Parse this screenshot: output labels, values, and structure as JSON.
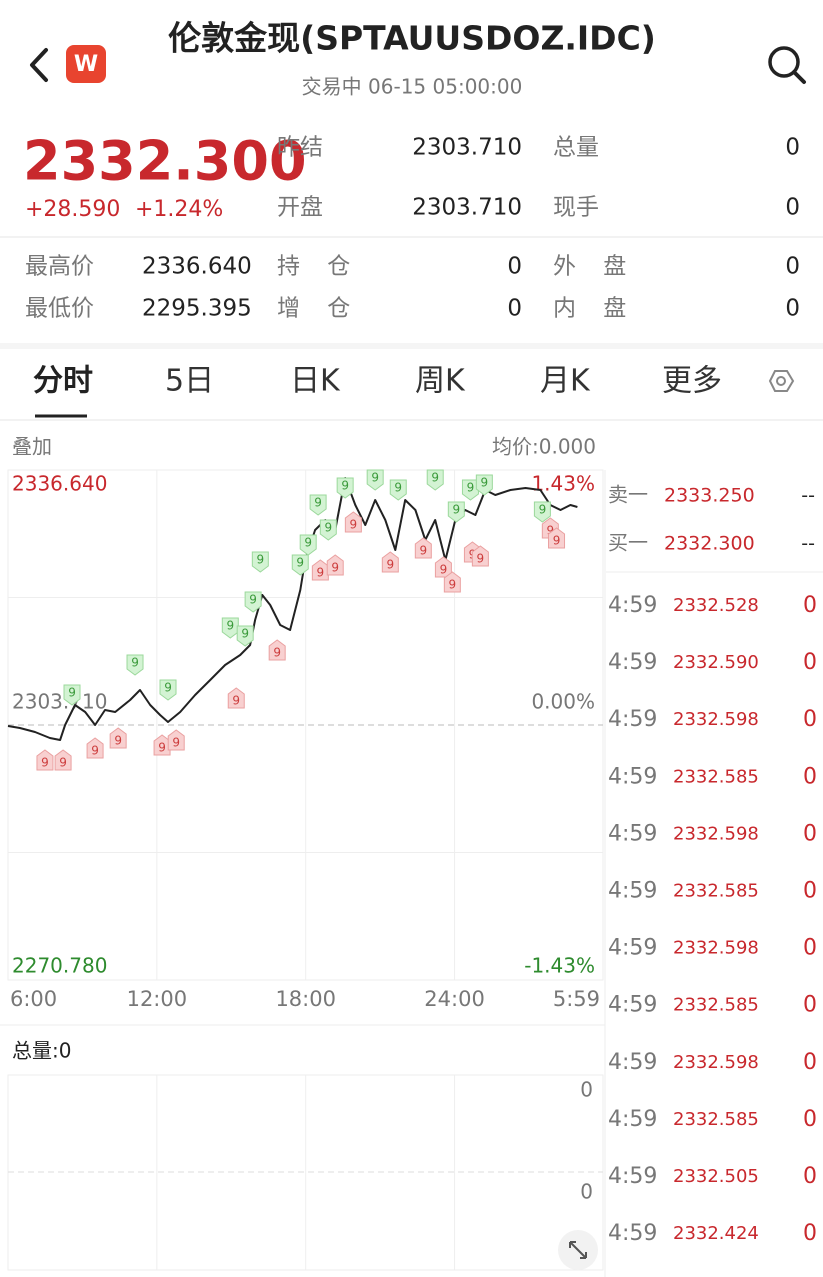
{
  "header": {
    "title": "伦敦金现(SPTAUUSDOZ.IDC)",
    "subtitle": "交易中 06-15 05:00:00",
    "badge": "W"
  },
  "quote": {
    "price": "2332.300",
    "change": "+28.590",
    "change_pct": "+1.24%",
    "fields": [
      {
        "label": "昨结",
        "value": "2303.710"
      },
      {
        "label": "总量",
        "value": "0"
      },
      {
        "label": "开盘",
        "value": "2303.710"
      },
      {
        "label": "现手",
        "value": "0"
      },
      {
        "label": "最高价",
        "value": "2336.640"
      },
      {
        "label": "持 仓",
        "value": "0"
      },
      {
        "label": "外 盘",
        "value": "0"
      },
      {
        "label": "最低价",
        "value": "2295.395"
      },
      {
        "label": "增 仓",
        "value": "0"
      },
      {
        "label": "内 盘",
        "value": "0"
      }
    ]
  },
  "tabs": [
    "分时",
    "5日",
    "日K",
    "周K",
    "月K",
    "更多"
  ],
  "chart_data": {
    "type": "line",
    "overlay_label": "叠加",
    "avg_label": "均价:0.000",
    "color": "#222222",
    "x": [
      0,
      0.48,
      1.09,
      1.69,
      2.1,
      2.3,
      2.7,
      3.11,
      3.51,
      3.91,
      4.32,
      4.92,
      5.32,
      5.73,
      6.13,
      6.45,
      6.94,
      7.54,
      8.15,
      8.75,
      9.36,
      9.76,
      9.96,
      10.25,
      10.57,
      10.97,
      11.37,
      11.78,
      11.98,
      12.38,
      12.79,
      13.19,
      13.59,
      14.0,
      14.4,
      14.8,
      15.21,
      15.61,
      16.01,
      16.42,
      16.82,
      17.22,
      17.63,
      18.03,
      18.43,
      18.84,
      19.24,
      19.64,
      20.25,
      20.86,
      21.46,
      21.86,
      22.27,
      22.67,
      22.95
    ],
    "values": [
      2303.58,
      2303.32,
      2302.81,
      2302.03,
      2301.77,
      2303.71,
      2306.29,
      2305.39,
      2303.71,
      2305.65,
      2305.39,
      2306.94,
      2308.23,
      2306.29,
      2305.0,
      2304.1,
      2305.39,
      2307.58,
      2309.52,
      2311.46,
      2312.75,
      2314.04,
      2317.27,
      2320.5,
      2319.21,
      2316.62,
      2315.98,
      2321.14,
      2325.01,
      2328.89,
      2330.18,
      2328.89,
      2335.61,
      2332.12,
      2329.54,
      2332.77,
      2330.18,
      2326.31,
      2332.77,
      2331.48,
      2327.6,
      2330.18,
      2325.01,
      2330.18,
      2331.48,
      2330.83,
      2334.06,
      2333.41,
      2334.06,
      2334.32,
      2334.06,
      2332.12,
      2331.48,
      2332.12,
      2331.86
    ],
    "xlim": [
      0,
      23.983
    ],
    "xticks": [
      {
        "value": 0,
        "label": "6:00"
      },
      {
        "value": 6,
        "label": "12:00"
      },
      {
        "value": 12,
        "label": "18:00"
      },
      {
        "value": 18,
        "label": "24:00"
      },
      {
        "value": 23.983,
        "label": "5:59"
      }
    ],
    "ylim": [
      2270.78,
      2336.64
    ],
    "yticks": [
      {
        "value": 2336.64,
        "label": "2336.640"
      },
      {
        "value": 2303.71,
        "label": "2303.710"
      },
      {
        "value": 2270.78,
        "label": "2270.780"
      }
    ],
    "y2lim": [
      -1.43,
      1.43
    ],
    "y2ticks": [
      {
        "value": 1.43,
        "label": "1.43%"
      },
      {
        "value": 0,
        "label": "0.00%"
      },
      {
        "value": -1.43,
        "label": "-1.43%"
      }
    ],
    "signals": [
      {
        "kind": "up",
        "x": 2.58,
        "y": 2307.58,
        "label": "9"
      },
      {
        "kind": "up",
        "x": 5.12,
        "y": 2311.46,
        "label": "9"
      },
      {
        "kind": "up",
        "x": 6.45,
        "y": 2308.23,
        "label": "9"
      },
      {
        "kind": "up",
        "x": 8.96,
        "y": 2316.24,
        "label": "9"
      },
      {
        "kind": "up",
        "x": 9.56,
        "y": 2315.2,
        "label": "9"
      },
      {
        "kind": "up",
        "x": 9.88,
        "y": 2319.59,
        "label": "9"
      },
      {
        "kind": "up",
        "x": 10.17,
        "y": 2324.76,
        "label": "9"
      },
      {
        "kind": "up",
        "x": 11.78,
        "y": 2324.37,
        "label": "9"
      },
      {
        "kind": "up",
        "x": 12.1,
        "y": 2326.95,
        "label": "9"
      },
      {
        "kind": "up",
        "x": 12.5,
        "y": 2332.12,
        "label": "9"
      },
      {
        "kind": "up",
        "x": 12.91,
        "y": 2328.89,
        "label": "9"
      },
      {
        "kind": "up",
        "x": 13.59,
        "y": 2334.32,
        "label": "9"
      },
      {
        "kind": "up",
        "x": 14.8,
        "y": 2335.35,
        "label": "9"
      },
      {
        "kind": "up",
        "x": 15.73,
        "y": 2334.06,
        "label": "9"
      },
      {
        "kind": "up",
        "x": 17.22,
        "y": 2335.35,
        "label": "9"
      },
      {
        "kind": "up",
        "x": 18.07,
        "y": 2331.22,
        "label": "9"
      },
      {
        "kind": "up",
        "x": 18.64,
        "y": 2334.06,
        "label": "9"
      },
      {
        "kind": "up",
        "x": 19.2,
        "y": 2334.7,
        "label": "9"
      },
      {
        "kind": "up",
        "x": 21.54,
        "y": 2331.22,
        "label": "9"
      },
      {
        "kind": "down",
        "x": 1.49,
        "y": 2299.19,
        "label": "9"
      },
      {
        "kind": "down",
        "x": 2.22,
        "y": 2299.19,
        "label": "9"
      },
      {
        "kind": "down",
        "x": 3.51,
        "y": 2300.74,
        "label": "9"
      },
      {
        "kind": "down",
        "x": 4.44,
        "y": 2302.03,
        "label": "9"
      },
      {
        "kind": "down",
        "x": 6.21,
        "y": 2301.13,
        "label": "9"
      },
      {
        "kind": "down",
        "x": 6.78,
        "y": 2301.77,
        "label": "9"
      },
      {
        "kind": "down",
        "x": 9.2,
        "y": 2307.2,
        "label": "9"
      },
      {
        "kind": "down",
        "x": 10.85,
        "y": 2313.4,
        "label": "9"
      },
      {
        "kind": "down",
        "x": 12.59,
        "y": 2323.73,
        "label": "9"
      },
      {
        "kind": "down",
        "x": 13.19,
        "y": 2324.37,
        "label": "9"
      },
      {
        "kind": "down",
        "x": 13.92,
        "y": 2329.93,
        "label": "9"
      },
      {
        "kind": "down",
        "x": 15.41,
        "y": 2324.76,
        "label": "9"
      },
      {
        "kind": "down",
        "x": 16.74,
        "y": 2326.57,
        "label": "9"
      },
      {
        "kind": "down",
        "x": 17.55,
        "y": 2324.12,
        "label": "9"
      },
      {
        "kind": "down",
        "x": 17.91,
        "y": 2322.18,
        "label": "9"
      },
      {
        "kind": "down",
        "x": 18.72,
        "y": 2326.05,
        "label": "9"
      },
      {
        "kind": "down",
        "x": 19.04,
        "y": 2325.53,
        "label": "9"
      },
      {
        "kind": "down",
        "x": 21.86,
        "y": 2329.15,
        "label": "9"
      },
      {
        "kind": "down",
        "x": 22.11,
        "y": 2327.86,
        "label": "9"
      }
    ],
    "volume_title": "总量:0",
    "volume_ticks": [
      "0",
      "0"
    ]
  },
  "order_book": [
    {
      "side": "卖一",
      "price": "2333.250",
      "volume": "--"
    },
    {
      "side": "买一",
      "price": "2332.300",
      "volume": "--"
    }
  ],
  "trades": [
    {
      "time": "4:59",
      "price": "2332.528",
      "volume": "0"
    },
    {
      "time": "4:59",
      "price": "2332.590",
      "volume": "0"
    },
    {
      "time": "4:59",
      "price": "2332.598",
      "volume": "0"
    },
    {
      "time": "4:59",
      "price": "2332.585",
      "volume": "0"
    },
    {
      "time": "4:59",
      "price": "2332.598",
      "volume": "0"
    },
    {
      "time": "4:59",
      "price": "2332.585",
      "volume": "0"
    },
    {
      "time": "4:59",
      "price": "2332.598",
      "volume": "0"
    },
    {
      "time": "4:59",
      "price": "2332.585",
      "volume": "0"
    },
    {
      "time": "4:59",
      "price": "2332.598",
      "volume": "0"
    },
    {
      "time": "4:59",
      "price": "2332.585",
      "volume": "0"
    },
    {
      "time": "4:59",
      "price": "2332.505",
      "volume": "0"
    },
    {
      "time": "4:59",
      "price": "2332.424",
      "volume": "0"
    }
  ]
}
